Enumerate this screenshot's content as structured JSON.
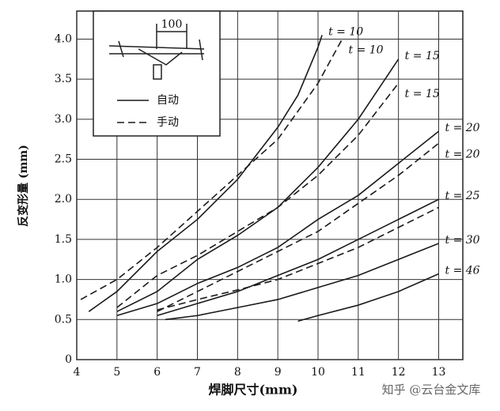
{
  "chart_data": {
    "type": "line",
    "y_label": "反变形量 (mm)",
    "x_label": "焊脚尺寸(mm)",
    "watermark": "知乎 @云台金文库",
    "inset_dimension": "100",
    "legend": [
      {
        "label": "自动",
        "dash": false
      },
      {
        "label": "手动",
        "dash": true
      }
    ],
    "xlim": [
      4,
      13.6
    ],
    "ylim": [
      0,
      4.35
    ],
    "xticks": [
      4,
      5,
      6,
      7,
      8,
      9,
      10,
      11,
      12,
      13
    ],
    "yticks": [
      0,
      0.5,
      {
        "value": 1,
        "label": "1.0"
      },
      1.5,
      {
        "value": 2,
        "label": "2.0"
      },
      2.5,
      {
        "value": 3,
        "label": "3.0"
      },
      3.5,
      {
        "value": 4,
        "label": "4.0"
      }
    ],
    "grid": true,
    "series": [
      {
        "name": "t = 10",
        "color": "#1a1a1a",
        "dash": false,
        "x": [
          4.3,
          5,
          6,
          7,
          8,
          9,
          9.5,
          10,
          10.1
        ],
        "values": [
          0.6,
          0.85,
          1.35,
          1.75,
          2.25,
          2.9,
          3.3,
          3.9,
          4.05
        ]
      },
      {
        "name": "t = 10",
        "color": "#1a1a1a",
        "dash": true,
        "x": [
          4.1,
          5,
          6,
          7,
          8,
          9,
          10,
          10.6
        ],
        "values": [
          0.75,
          1.0,
          1.4,
          1.85,
          2.3,
          2.75,
          3.45,
          4.0
        ]
      },
      {
        "name": "t = 15",
        "color": "#1a1a1a",
        "dash": false,
        "x": [
          5,
          6,
          7,
          8,
          9,
          10,
          11,
          12
        ],
        "values": [
          0.6,
          0.85,
          1.25,
          1.55,
          1.9,
          2.4,
          3.0,
          3.75
        ]
      },
      {
        "name": "t = 15",
        "color": "#1a1a1a",
        "dash": true,
        "x": [
          5,
          6,
          7,
          8,
          9,
          10,
          11,
          12
        ],
        "values": [
          0.65,
          1.05,
          1.3,
          1.6,
          1.9,
          2.3,
          2.8,
          3.45
        ]
      },
      {
        "name": "t = 20",
        "color": "#1a1a1a",
        "dash": false,
        "x": [
          5,
          6,
          7,
          8,
          9,
          10,
          11,
          12,
          13
        ],
        "values": [
          0.55,
          0.7,
          0.95,
          1.15,
          1.4,
          1.75,
          2.05,
          2.45,
          2.85
        ]
      },
      {
        "name": "t = 20",
        "color": "#1a1a1a",
        "dash": true,
        "x": [
          6,
          7,
          8,
          9,
          10,
          11,
          12,
          13
        ],
        "values": [
          0.6,
          0.85,
          1.1,
          1.35,
          1.6,
          1.95,
          2.3,
          2.7
        ]
      },
      {
        "name": "t = 25",
        "color": "#1a1a1a",
        "dash": false,
        "x": [
          6,
          7,
          8,
          9,
          10,
          11,
          12,
          13
        ],
        "values": [
          0.55,
          0.7,
          0.85,
          1.05,
          1.25,
          1.5,
          1.75,
          2.0
        ]
      },
      {
        "color": "#1a1a1a",
        "dash": true,
        "x": [
          6,
          7,
          8,
          9,
          10,
          11,
          12,
          13
        ],
        "values": [
          0.62,
          0.75,
          0.87,
          1.0,
          1.2,
          1.4,
          1.65,
          1.9
        ]
      },
      {
        "name": "t = 30",
        "color": "#1a1a1a",
        "dash": false,
        "x": [
          6.2,
          7,
          8,
          9,
          10,
          11,
          12,
          13
        ],
        "values": [
          0.5,
          0.55,
          0.65,
          0.75,
          0.9,
          1.05,
          1.25,
          1.45
        ]
      },
      {
        "name": "t = 46",
        "color": "#1a1a1a",
        "dash": false,
        "x": [
          9.5,
          10,
          11,
          12,
          13
        ],
        "values": [
          0.48,
          0.55,
          0.68,
          0.85,
          1.07
        ]
      }
    ]
  }
}
